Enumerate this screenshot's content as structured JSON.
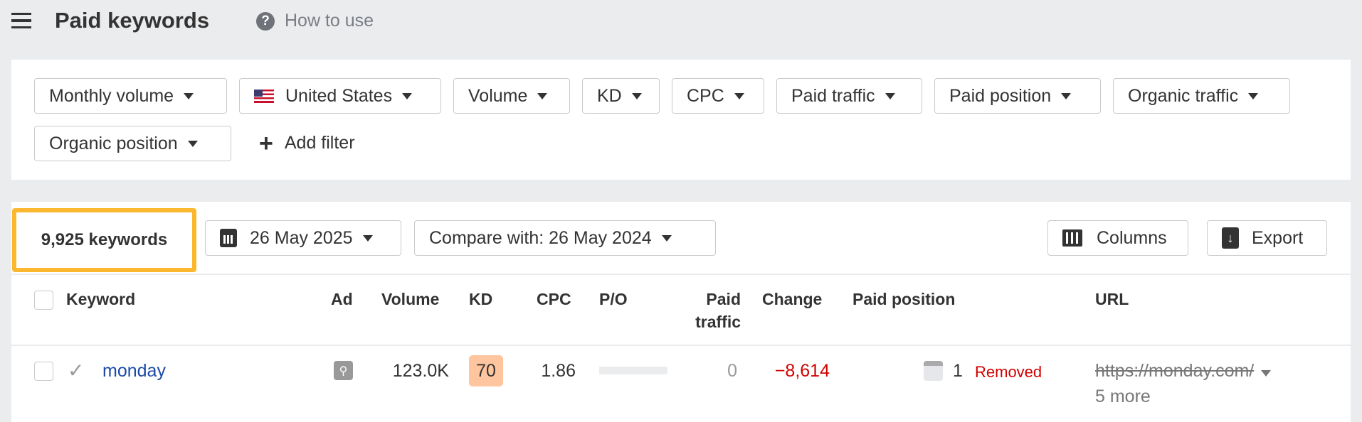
{
  "header": {
    "title": "Paid keywords",
    "help_label": "How to use"
  },
  "filters": [
    {
      "label": "Monthly volume"
    },
    {
      "label": "United States",
      "flag": "us-flag"
    },
    {
      "label": "Volume"
    },
    {
      "label": "KD"
    },
    {
      "label": "CPC"
    },
    {
      "label": "Paid traffic"
    },
    {
      "label": "Paid position"
    },
    {
      "label": "Organic traffic"
    },
    {
      "label": "Organic position"
    }
  ],
  "add_filter_label": "Add filter",
  "toolbar": {
    "count": "9,925 keywords",
    "date": "26 May 2025",
    "compare": "Compare with: 26 May 2024",
    "columns": "Columns",
    "export": "Export",
    "highlight_color": "#fbb82f"
  },
  "table": {
    "columns": {
      "keyword": "Keyword",
      "ad": "Ad",
      "volume": "Volume",
      "kd": "KD",
      "cpc": "CPC",
      "po": "P/O",
      "paid_traffic_1": "Paid",
      "paid_traffic_2": "traffic",
      "change": "Change",
      "paid_position": "Paid position",
      "url": "URL"
    },
    "rows": [
      {
        "keyword": "monday",
        "volume": "123.0K",
        "kd": "70",
        "kd_color": "#ffc59f",
        "cpc": "1.86",
        "paid_traffic": "0",
        "change": "−8,614",
        "change_color": "#d30000",
        "paid_position": "1",
        "status": "Removed",
        "url": "https://monday.com/",
        "more": "5 more"
      }
    ]
  }
}
